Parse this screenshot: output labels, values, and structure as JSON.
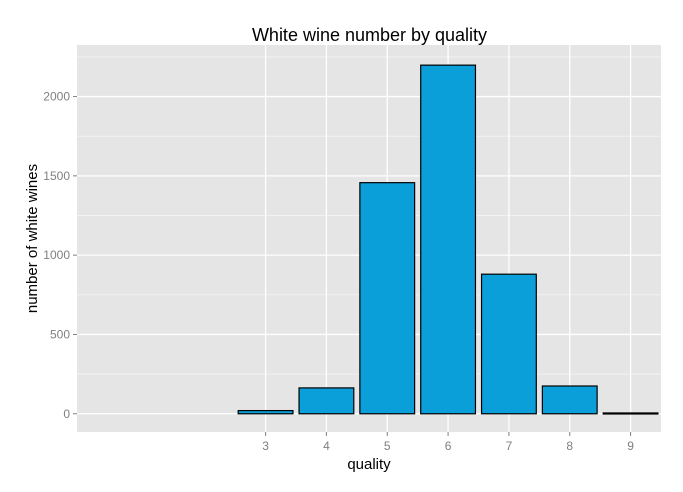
{
  "chart_data": {
    "type": "bar",
    "title": "White wine number by quality",
    "xlabel": "quality",
    "ylabel": "number of white wines",
    "categories": [
      "3",
      "4",
      "5",
      "6",
      "7",
      "8",
      "9"
    ],
    "x_values": [
      3,
      4,
      5,
      6,
      7,
      8,
      9
    ],
    "values": [
      20,
      163,
      1457,
      2198,
      880,
      175,
      5
    ],
    "xlim": [
      -0.1,
      9.5
    ],
    "ylim": [
      -115,
      2325
    ],
    "y_ticks": [
      0,
      500,
      1000,
      1500,
      2000
    ],
    "y_tick_labels": [
      "0",
      "500",
      "1000",
      "1500",
      "2000"
    ],
    "x_ticks": [
      3,
      4,
      5,
      6,
      7,
      8,
      9
    ],
    "x_tick_labels": [
      "3",
      "4",
      "5",
      "6",
      "7",
      "8",
      "9"
    ],
    "grid": true,
    "legend": "none",
    "colors": {
      "bar_fill": "#0B9FDA",
      "bar_stroke": "#000000",
      "panel_bg": "#E5E5E5",
      "grid_major": "#FFFFFF",
      "grid_minor": "#F2F2F2",
      "tick_label": "#7F7F7F",
      "text": "#000000"
    }
  }
}
